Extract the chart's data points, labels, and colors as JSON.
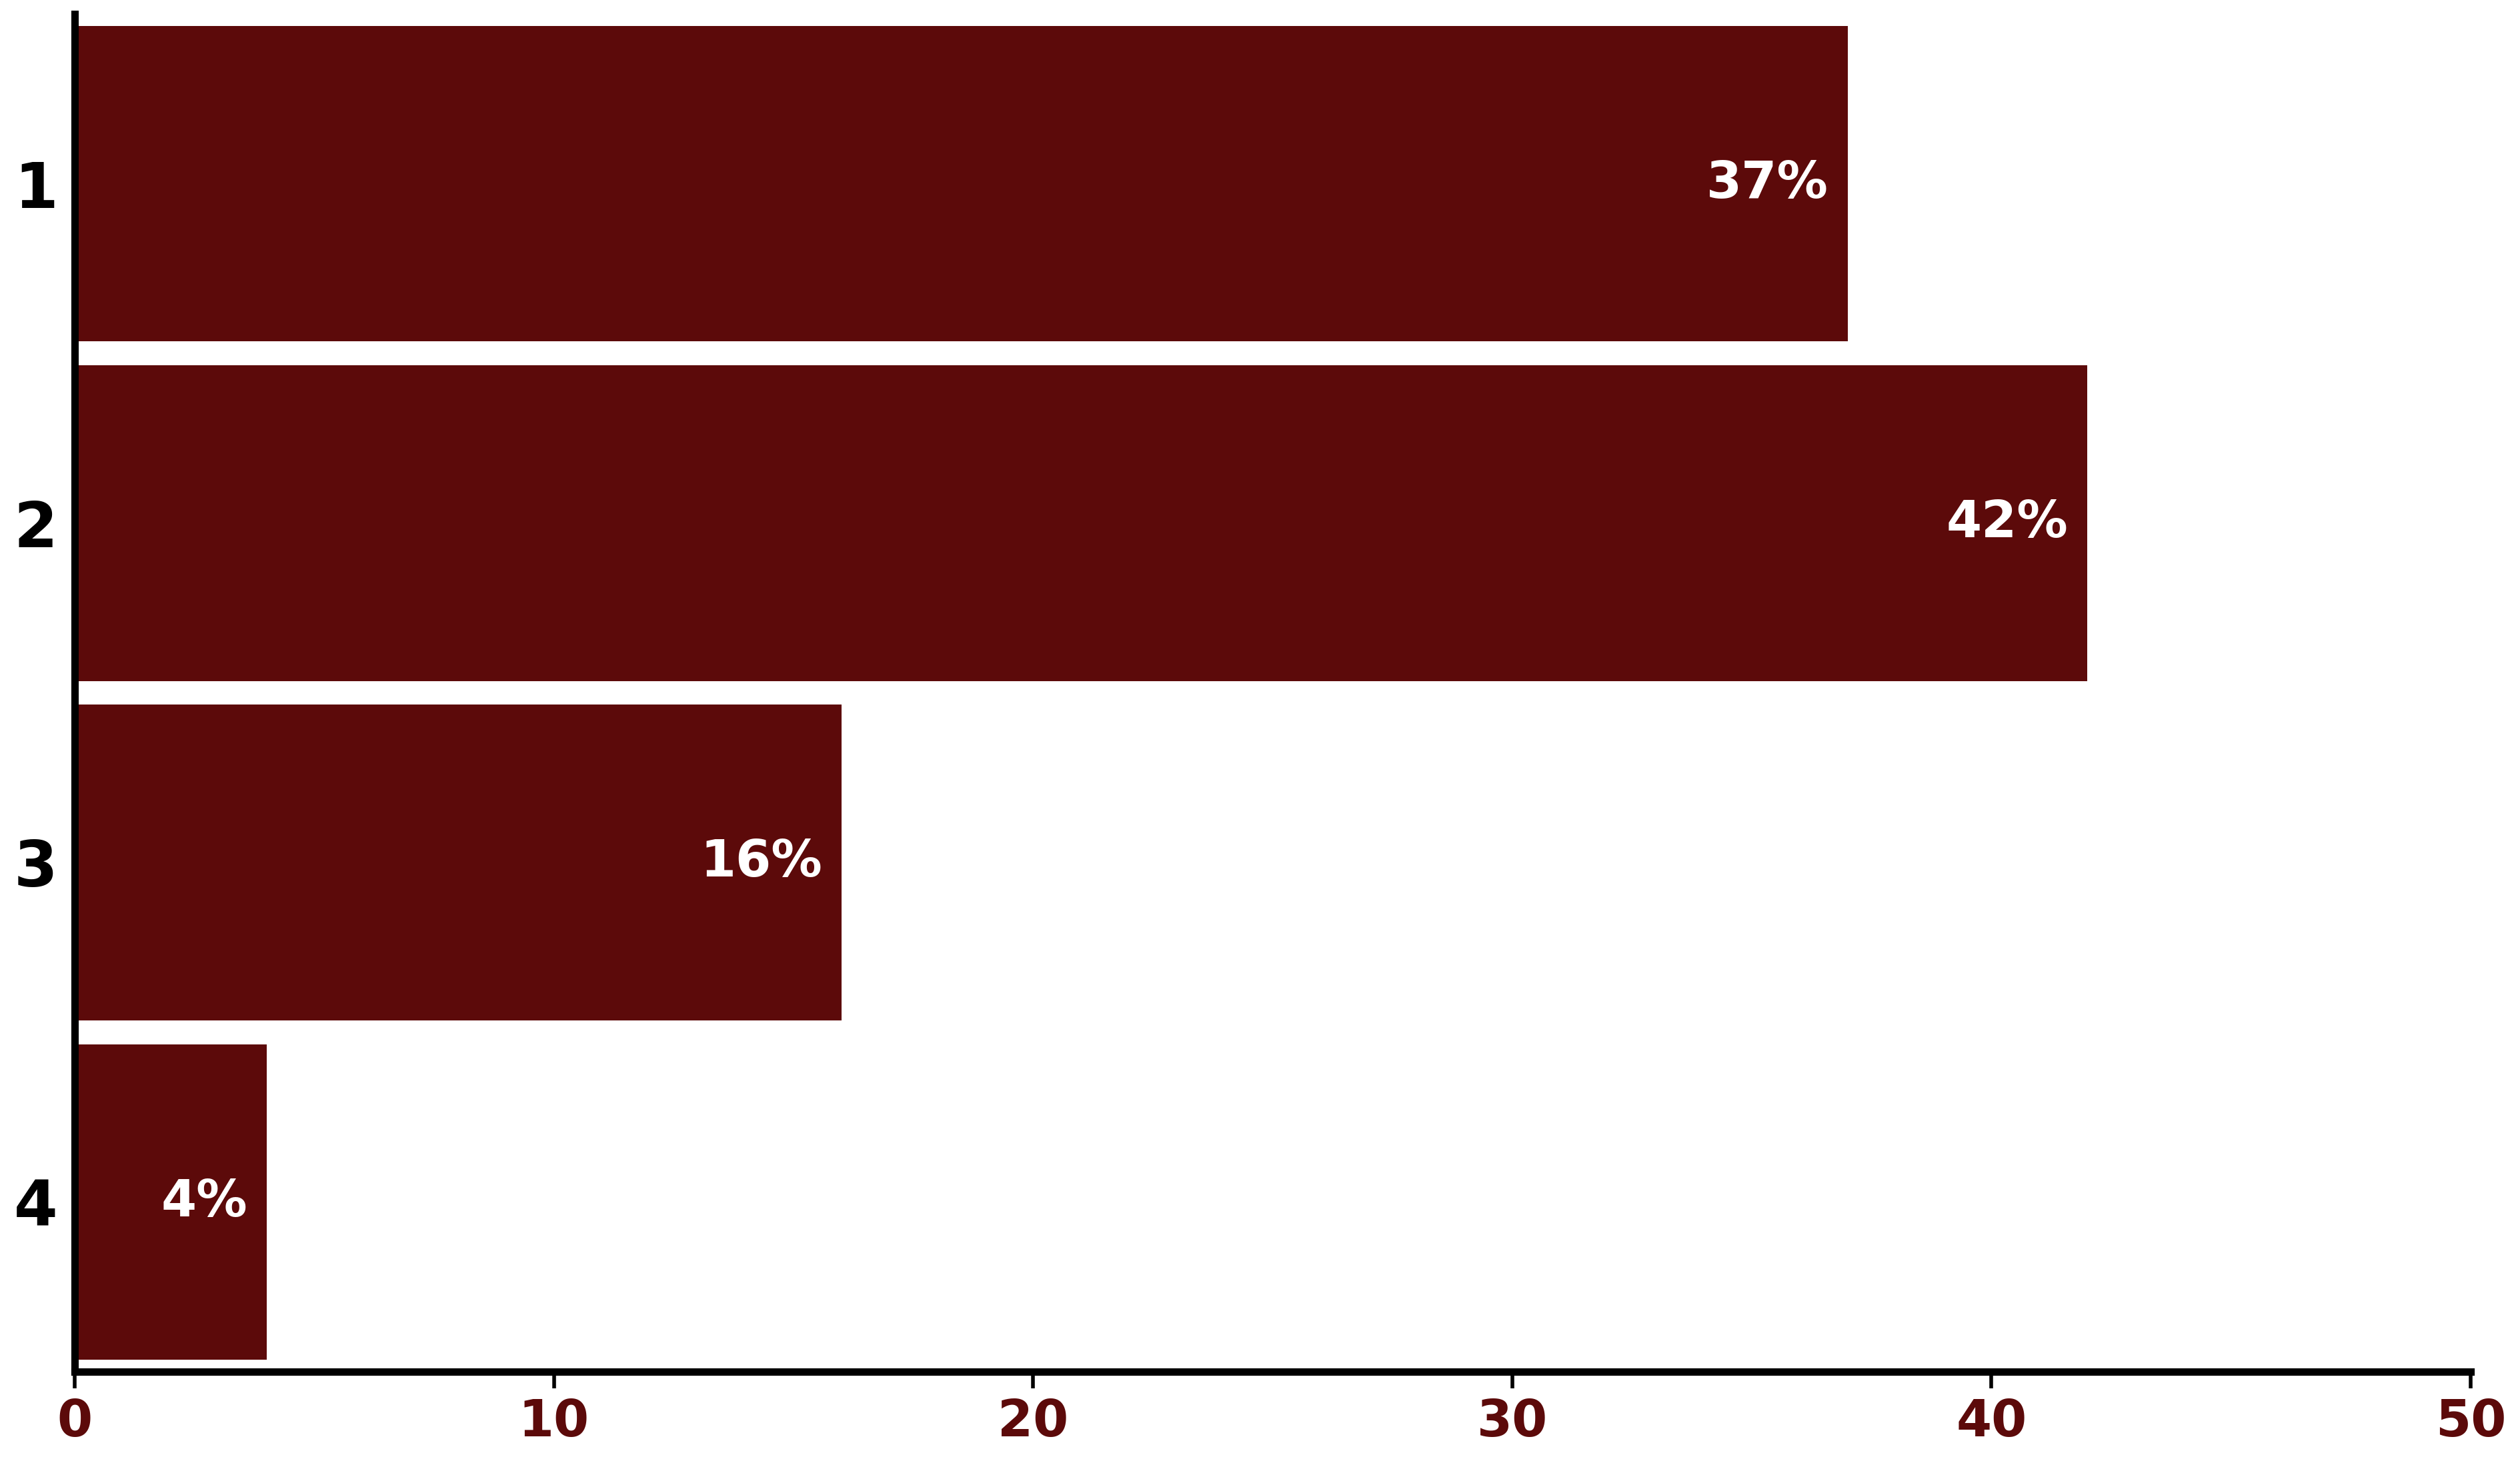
{
  "categories": [
    "1",
    "2",
    "3",
    "4"
  ],
  "values": [
    37,
    42,
    16,
    4
  ],
  "labels": [
    "37%",
    "42%",
    "16%",
    "4%"
  ],
  "bar_color": "#5C0A0A",
  "background_color": "#FFFFFF",
  "xlim": [
    0,
    50
  ],
  "xticks": [
    0,
    10,
    20,
    30,
    40,
    50
  ],
  "label_fontsize": 55,
  "tick_fontsize": 55,
  "ytick_fontsize": 68,
  "bar_height": 0.93,
  "label_color": "#FFFFFF",
  "tick_color": "#5C0A0A",
  "axis_linewidth": 6,
  "spine_linewidth": 8
}
